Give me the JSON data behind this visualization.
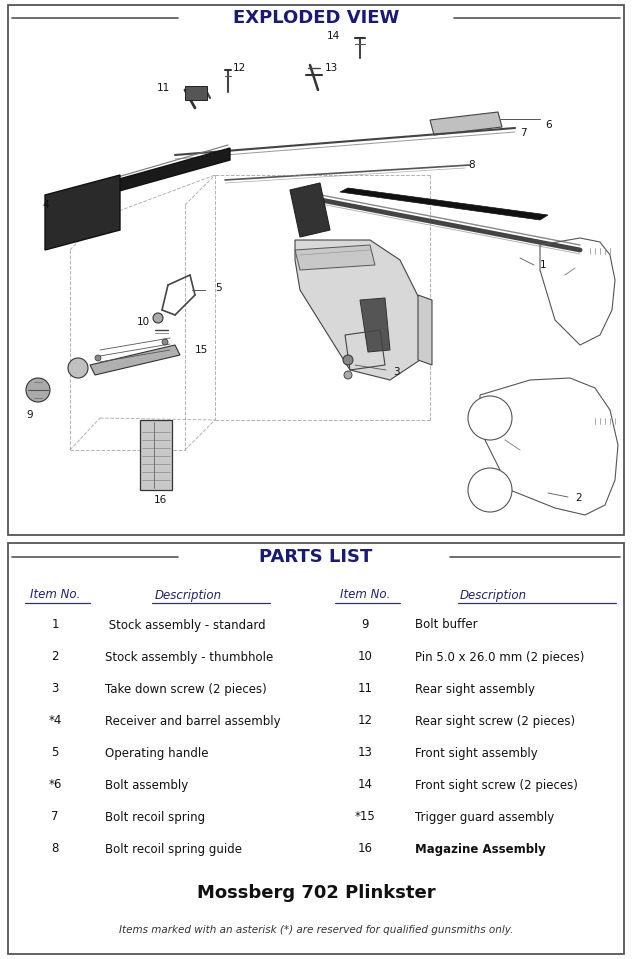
{
  "title_top": "EXPLODED VIEW",
  "title_bottom": "PARTS LIST",
  "bg_color": "#ffffff",
  "border_color": "#333333",
  "title_color": "#1a1a6e",
  "parts_left": [
    {
      "num": "1",
      "desc": " Stock assembly - standard"
    },
    {
      "num": "2",
      "desc": "Stock assembly - thumbhole"
    },
    {
      "num": "3",
      "desc": "Take down screw (2 pieces)"
    },
    {
      "num": "*4",
      "desc": "Receiver and barrel assembly"
    },
    {
      "num": "5",
      "desc": "Operating handle"
    },
    {
      "num": "*6",
      "desc": "Bolt assembly"
    },
    {
      "num": "7",
      "desc": "Bolt recoil spring"
    },
    {
      "num": "8",
      "desc": "Bolt recoil spring guide"
    }
  ],
  "parts_right": [
    {
      "num": "9",
      "desc": "Bolt buffer"
    },
    {
      "num": "10",
      "desc": "Pin 5.0 x 26.0 mm (2 pieces)"
    },
    {
      "num": "11",
      "desc": "Rear sight assembly"
    },
    {
      "num": "12",
      "desc": "Rear sight screw (2 pieces)"
    },
    {
      "num": "13",
      "desc": "Front sight assembly"
    },
    {
      "num": "14",
      "desc": "Front sight screw (2 pieces)"
    },
    {
      "num": "*15",
      "desc": "Trigger guard assembly"
    },
    {
      "num": "16",
      "desc": "Magazine Assembly"
    }
  ],
  "model_title": "Mossberg 702 Plinkster",
  "disclaimer": "Items marked with an asterisk (*) are reserved for qualified gunsmiths only.",
  "header_item": "Item No.",
  "header_desc": "Description"
}
